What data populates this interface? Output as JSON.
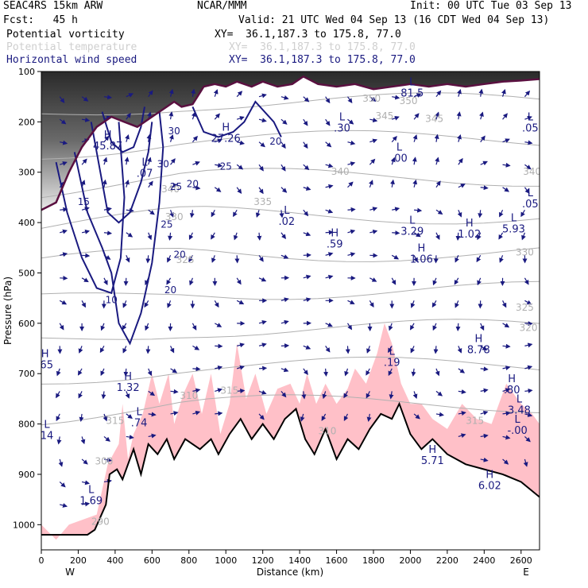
{
  "header": {
    "line1_left": "SEAC4RS 15km ARW",
    "line1_center": "NCAR/MMM",
    "line1_right": "Init: 00 UTC Tue 03 Sep 13",
    "fcst": "Fcst:   45 h",
    "valid": "Valid: 21 UTC Wed 04 Sep 13 (16 CDT Wed 04 Sep 13)",
    "fields": [
      {
        "name": "Potential vorticity",
        "xy": "XY=  36.1,187.3 to 175.8, 77.0"
      },
      {
        "name": "Potential temperature",
        "xy": "XY=  36.1,187.3 to 175.8, 77.0"
      },
      {
        "name": "Horizontal wind speed",
        "xy": "XY=  36.1,187.3 to 175.8, 77.0"
      }
    ]
  },
  "colors": {
    "pv_shade": "#3a3a3a",
    "pv_contour": "#5a1040",
    "theta_contour": "#b0b0b0",
    "wind_contour": "#1a1a80",
    "cloud_fill": "#ffc0c8",
    "terrain_line": "#000000"
  },
  "chart_data": {
    "type": "cross-section",
    "xlabel": "Distance (km)",
    "ylabel": "Pressure (hPa)",
    "xlim": [
      0,
      2700
    ],
    "ylim": [
      1050,
      100
    ],
    "x_ticks": [
      0,
      200,
      400,
      600,
      800,
      1000,
      1200,
      1400,
      1600,
      1800,
      2000,
      2200,
      2400,
      2600
    ],
    "y_ticks": [
      100,
      200,
      300,
      400,
      500,
      600,
      700,
      800,
      900,
      1000
    ],
    "west_label": "W",
    "east_label": "E",
    "terrain": [
      {
        "x": 0,
        "p": 1020
      },
      {
        "x": 250,
        "p": 1020
      },
      {
        "x": 290,
        "p": 1010
      },
      {
        "x": 350,
        "p": 960
      },
      {
        "x": 370,
        "p": 900
      },
      {
        "x": 410,
        "p": 890
      },
      {
        "x": 440,
        "p": 910
      },
      {
        "x": 470,
        "p": 880
      },
      {
        "x": 500,
        "p": 850
      },
      {
        "x": 540,
        "p": 900
      },
      {
        "x": 580,
        "p": 840
      },
      {
        "x": 630,
        "p": 860
      },
      {
        "x": 680,
        "p": 830
      },
      {
        "x": 720,
        "p": 870
      },
      {
        "x": 780,
        "p": 830
      },
      {
        "x": 860,
        "p": 850
      },
      {
        "x": 920,
        "p": 830
      },
      {
        "x": 960,
        "p": 860
      },
      {
        "x": 1020,
        "p": 820
      },
      {
        "x": 1080,
        "p": 790
      },
      {
        "x": 1140,
        "p": 830
      },
      {
        "x": 1200,
        "p": 800
      },
      {
        "x": 1260,
        "p": 830
      },
      {
        "x": 1320,
        "p": 790
      },
      {
        "x": 1380,
        "p": 770
      },
      {
        "x": 1430,
        "p": 830
      },
      {
        "x": 1480,
        "p": 860
      },
      {
        "x": 1540,
        "p": 810
      },
      {
        "x": 1600,
        "p": 870
      },
      {
        "x": 1660,
        "p": 830
      },
      {
        "x": 1720,
        "p": 850
      },
      {
        "x": 1780,
        "p": 810
      },
      {
        "x": 1840,
        "p": 780
      },
      {
        "x": 1900,
        "p": 790
      },
      {
        "x": 1940,
        "p": 760
      },
      {
        "x": 2000,
        "p": 820
      },
      {
        "x": 2060,
        "p": 850
      },
      {
        "x": 2120,
        "p": 830
      },
      {
        "x": 2200,
        "p": 860
      },
      {
        "x": 2300,
        "p": 880
      },
      {
        "x": 2400,
        "p": 890
      },
      {
        "x": 2500,
        "p": 900
      },
      {
        "x": 2600,
        "p": 915
      },
      {
        "x": 2700,
        "p": 945
      }
    ],
    "cloud_tops": [
      {
        "x": 0,
        "p": 1000
      },
      {
        "x": 80,
        "p": 1030
      },
      {
        "x": 150,
        "p": 1000
      },
      {
        "x": 300,
        "p": 980
      },
      {
        "x": 360,
        "p": 880
      },
      {
        "x": 420,
        "p": 840
      },
      {
        "x": 440,
        "p": 760
      },
      {
        "x": 470,
        "p": 870
      },
      {
        "x": 500,
        "p": 820
      },
      {
        "x": 550,
        "p": 780
      },
      {
        "x": 600,
        "p": 700
      },
      {
        "x": 640,
        "p": 760
      },
      {
        "x": 690,
        "p": 700
      },
      {
        "x": 720,
        "p": 800
      },
      {
        "x": 770,
        "p": 740
      },
      {
        "x": 820,
        "p": 700
      },
      {
        "x": 870,
        "p": 780
      },
      {
        "x": 920,
        "p": 700
      },
      {
        "x": 970,
        "p": 820
      },
      {
        "x": 1020,
        "p": 760
      },
      {
        "x": 1060,
        "p": 640
      },
      {
        "x": 1110,
        "p": 750
      },
      {
        "x": 1160,
        "p": 700
      },
      {
        "x": 1220,
        "p": 780
      },
      {
        "x": 1280,
        "p": 730
      },
      {
        "x": 1350,
        "p": 720
      },
      {
        "x": 1400,
        "p": 760
      },
      {
        "x": 1440,
        "p": 700
      },
      {
        "x": 1490,
        "p": 760
      },
      {
        "x": 1540,
        "p": 720
      },
      {
        "x": 1600,
        "p": 760
      },
      {
        "x": 1660,
        "p": 730
      },
      {
        "x": 1700,
        "p": 690
      },
      {
        "x": 1760,
        "p": 720
      },
      {
        "x": 1820,
        "p": 660
      },
      {
        "x": 1860,
        "p": 600
      },
      {
        "x": 1900,
        "p": 640
      },
      {
        "x": 1950,
        "p": 720
      },
      {
        "x": 2000,
        "p": 760
      },
      {
        "x": 2060,
        "p": 760
      },
      {
        "x": 2120,
        "p": 790
      },
      {
        "x": 2200,
        "p": 810
      },
      {
        "x": 2280,
        "p": 760
      },
      {
        "x": 2360,
        "p": 790
      },
      {
        "x": 2440,
        "p": 800
      },
      {
        "x": 2520,
        "p": 720
      },
      {
        "x": 2600,
        "p": 760
      },
      {
        "x": 2660,
        "p": 780
      },
      {
        "x": 2700,
        "p": 800
      }
    ],
    "pv_two_pvu": [
      {
        "x": 0,
        "p": 375
      },
      {
        "x": 80,
        "p": 360
      },
      {
        "x": 150,
        "p": 300
      },
      {
        "x": 220,
        "p": 250
      },
      {
        "x": 300,
        "p": 210
      },
      {
        "x": 380,
        "p": 190
      },
      {
        "x": 450,
        "p": 200
      },
      {
        "x": 520,
        "p": 210
      },
      {
        "x": 600,
        "p": 190
      },
      {
        "x": 660,
        "p": 175
      },
      {
        "x": 720,
        "p": 160
      },
      {
        "x": 760,
        "p": 170
      },
      {
        "x": 820,
        "p": 165
      },
      {
        "x": 880,
        "p": 130
      },
      {
        "x": 940,
        "p": 125
      },
      {
        "x": 1000,
        "p": 130
      },
      {
        "x": 1060,
        "p": 120
      },
      {
        "x": 1140,
        "p": 130
      },
      {
        "x": 1200,
        "p": 120
      },
      {
        "x": 1280,
        "p": 130
      },
      {
        "x": 1360,
        "p": 125
      },
      {
        "x": 1420,
        "p": 110
      },
      {
        "x": 1500,
        "p": 125
      },
      {
        "x": 1600,
        "p": 130
      },
      {
        "x": 1700,
        "p": 125
      },
      {
        "x": 1800,
        "p": 135
      },
      {
        "x": 1900,
        "p": 130
      },
      {
        "x": 2000,
        "p": 125
      },
      {
        "x": 2100,
        "p": 130
      },
      {
        "x": 2200,
        "p": 125
      },
      {
        "x": 2300,
        "p": 130
      },
      {
        "x": 2400,
        "p": 125
      },
      {
        "x": 2500,
        "p": 120
      },
      {
        "x": 2600,
        "p": 118
      },
      {
        "x": 2700,
        "p": 115
      }
    ],
    "wind_speed_contours": [
      {
        "value": 10,
        "points": [
          [
            80,
            280
          ],
          [
            140,
            380
          ],
          [
            220,
            470
          ],
          [
            300,
            530
          ],
          [
            380,
            540
          ],
          [
            430,
            470
          ],
          [
            450,
            350
          ],
          [
            420,
            200
          ]
        ]
      },
      {
        "value": 20,
        "points": [
          [
            180,
            260
          ],
          [
            250,
            380
          ],
          [
            330,
            450
          ],
          [
            380,
            500
          ],
          [
            420,
            600
          ],
          [
            480,
            640
          ],
          [
            540,
            580
          ],
          [
            600,
            480
          ],
          [
            640,
            360
          ],
          [
            660,
            250
          ],
          [
            640,
            180
          ]
        ]
      },
      {
        "value": 25,
        "points": [
          [
            270,
            200
          ],
          [
            320,
            300
          ],
          [
            360,
            380
          ],
          [
            420,
            400
          ],
          [
            480,
            380
          ],
          [
            540,
            320
          ],
          [
            580,
            260
          ],
          [
            600,
            200
          ]
        ]
      },
      {
        "value": 30,
        "points": [
          [
            330,
            180
          ],
          [
            380,
            240
          ],
          [
            440,
            260
          ],
          [
            500,
            250
          ],
          [
            540,
            210
          ],
          [
            560,
            170
          ]
        ]
      },
      {
        "value": 20,
        "points": [
          [
            820,
            170
          ],
          [
            880,
            220
          ],
          [
            960,
            230
          ],
          [
            1040,
            220
          ],
          [
            1100,
            200
          ],
          [
            1160,
            160
          ],
          [
            1260,
            200
          ],
          [
            1300,
            230
          ]
        ]
      }
    ],
    "theta_labels": [
      {
        "x": 1790,
        "p": 160,
        "v": "350"
      },
      {
        "x": 1990,
        "p": 165,
        "v": "350"
      },
      {
        "x": 1860,
        "p": 195,
        "v": "345"
      },
      {
        "x": 2130,
        "p": 200,
        "v": "345"
      },
      {
        "x": 1620,
        "p": 305,
        "v": "340"
      },
      {
        "x": 2660,
        "p": 305,
        "v": "340"
      },
      {
        "x": 1200,
        "p": 365,
        "v": "335"
      },
      {
        "x": 720,
        "p": 395,
        "v": "330"
      },
      {
        "x": 2620,
        "p": 465,
        "v": "330"
      },
      {
        "x": 780,
        "p": 480,
        "v": "325"
      },
      {
        "x": 2620,
        "p": 575,
        "v": "325"
      },
      {
        "x": 2640,
        "p": 615,
        "v": "320"
      },
      {
        "x": 800,
        "p": 750,
        "v": "310"
      },
      {
        "x": 1020,
        "p": 740,
        "v": "315"
      },
      {
        "x": 400,
        "p": 800,
        "v": "315"
      },
      {
        "x": 1550,
        "p": 820,
        "v": "310"
      },
      {
        "x": 2350,
        "p": 800,
        "v": "315"
      },
      {
        "x": 320,
        "p": 1000,
        "v": "290"
      },
      {
        "x": 340,
        "p": 880,
        "v": "300"
      },
      {
        "x": 700,
        "p": 340,
        "v": "340"
      }
    ],
    "wind_labels": [
      {
        "x": 380,
        "p": 560,
        "v": "10"
      },
      {
        "x": 700,
        "p": 540,
        "v": "20"
      },
      {
        "x": 750,
        "p": 470,
        "v": "20"
      },
      {
        "x": 680,
        "p": 410,
        "v": "25"
      },
      {
        "x": 730,
        "p": 335,
        "v": "25"
      },
      {
        "x": 660,
        "p": 290,
        "v": "30"
      },
      {
        "x": 720,
        "p": 225,
        "v": "30"
      },
      {
        "x": 1270,
        "p": 245,
        "v": "20"
      },
      {
        "x": 1000,
        "p": 295,
        "v": "25"
      },
      {
        "x": 820,
        "p": 330,
        "v": "20"
      },
      {
        "x": 230,
        "p": 365,
        "v": "15"
      }
    ],
    "extrema": [
      {
        "kind": "H",
        "value": "45.87",
        "x": 360,
        "p": 245
      },
      {
        "kind": "L",
        "value": ".07",
        "x": 560,
        "p": 300
      },
      {
        "kind": "H",
        "value": "27.26",
        "x": 1000,
        "p": 230
      },
      {
        "kind": "L",
        "value": ".02",
        "x": 1330,
        "p": 395
      },
      {
        "kind": "H",
        "value": ".59",
        "x": 1590,
        "p": 440
      },
      {
        "kind": "L",
        "value": "3.29",
        "x": 2010,
        "p": 415
      },
      {
        "kind": "H",
        "value": "1.06",
        "x": 2060,
        "p": 470
      },
      {
        "kind": "H",
        "value": "1.02",
        "x": 2320,
        "p": 420
      },
      {
        "kind": "L",
        "value": "5.93",
        "x": 2560,
        "p": 410
      },
      {
        "kind": "L",
        "value": ".30",
        "x": 1630,
        "p": 210
      },
      {
        "kind": "L",
        "value": ".00",
        "x": 1940,
        "p": 270
      },
      {
        "kind": "L",
        "value": "81.5",
        "x": 2010,
        "p": 140
      },
      {
        "kind": "L",
        "value": ".05",
        "x": 2650,
        "p": 210
      },
      {
        "kind": "L",
        "value": ".05",
        "x": 2650,
        "p": 360
      },
      {
        "kind": "H",
        "value": "8.78",
        "x": 2370,
        "p": 650
      },
      {
        "kind": "L",
        "value": ".19",
        "x": 1900,
        "p": 675
      },
      {
        "kind": "H",
        "value": ".80",
        "x": 2550,
        "p": 730
      },
      {
        "kind": "L",
        "value": "3.48",
        "x": 2590,
        "p": 770
      },
      {
        "kind": "L",
        "value": "-.00",
        "x": 2580,
        "p": 810
      },
      {
        "kind": "H",
        "value": "1.32",
        "x": 470,
        "p": 725
      },
      {
        "kind": "L",
        "value": ".74",
        "x": 530,
        "p": 795
      },
      {
        "kind": "H",
        "value": ".65",
        "x": 20,
        "p": 680
      },
      {
        "kind": "L",
        "value": "14",
        "x": 30,
        "p": 820
      },
      {
        "kind": "L",
        "value": "1.69",
        "x": 270,
        "p": 950
      },
      {
        "kind": "H",
        "value": "5.71",
        "x": 2120,
        "p": 870
      },
      {
        "kind": "H",
        "value": "6.02",
        "x": 2430,
        "p": 920
      }
    ]
  }
}
